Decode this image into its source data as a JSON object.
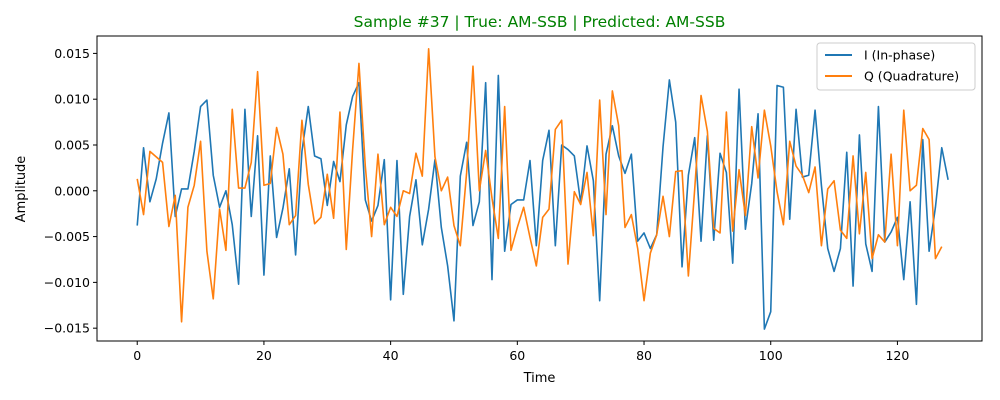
{
  "chart_data": {
    "type": "line",
    "title": "Sample #37 | True: AM-SSB | Predicted: AM-SSB",
    "title_color": "#008000",
    "xlabel": "Time",
    "ylabel": "Amplitude",
    "xlim": [
      -6.35,
      133.35
    ],
    "ylim": [
      -0.0164,
      0.0169
    ],
    "x_ticks": [
      0,
      20,
      40,
      60,
      80,
      100,
      120
    ],
    "x_tick_labels": [
      "0",
      "20",
      "40",
      "60",
      "80",
      "100",
      "120"
    ],
    "y_ticks": [
      -0.015,
      -0.01,
      -0.005,
      0.0,
      0.005,
      0.01,
      0.015
    ],
    "y_tick_labels": [
      "−0.015",
      "−0.010",
      "−0.005",
      "0.000",
      "0.005",
      "0.010",
      "0.015"
    ],
    "grid": false,
    "legend_position": "top-right",
    "series": [
      {
        "name": "I (In-phase)",
        "color": "#1f77b4",
        "values": [
          -0.0038,
          0.0047,
          -0.0012,
          0.0013,
          0.0052,
          0.0085,
          -0.0028,
          0.0002,
          0.0002,
          0.0043,
          0.0092,
          0.0099,
          0.0017,
          -0.0018,
          0.0,
          -0.0037,
          -0.0102,
          0.0089,
          -0.0028,
          0.006,
          -0.0092,
          0.0038,
          -0.0051,
          -0.0019,
          0.0024,
          -0.007,
          0.0043,
          0.0092,
          0.0038,
          0.0035,
          -0.0016,
          0.0032,
          0.001,
          0.0072,
          0.0103,
          0.0118,
          -0.001,
          -0.0033,
          -0.0016,
          0.0034,
          -0.0119,
          0.0033,
          -0.0113,
          -0.0028,
          0.0012,
          -0.0059,
          -0.002,
          0.0034,
          -0.004,
          -0.0082,
          -0.0142,
          0.0016,
          0.0053,
          -0.0038,
          -0.0012,
          0.0118,
          -0.0097,
          0.0126,
          -0.0066,
          -0.0015,
          -0.001,
          -0.001,
          0.0033,
          -0.006,
          0.0033,
          0.0066,
          -0.006,
          0.005,
          0.0045,
          0.0038,
          -0.0013,
          0.0049,
          0.0011,
          -0.012,
          0.004,
          0.0071,
          0.0038,
          0.0019,
          0.004,
          -0.0055,
          -0.0046,
          -0.0063,
          -0.0048,
          0.0048,
          0.0121,
          0.0075,
          -0.0083,
          0.0017,
          0.0058,
          -0.0055,
          0.006,
          -0.0054,
          0.0041,
          0.002,
          -0.0079,
          0.0111,
          -0.0042,
          0.0008,
          0.0084,
          -0.0151,
          -0.0132,
          0.0115,
          0.0113,
          -0.0031,
          0.0089,
          0.0015,
          0.0017,
          0.0088,
          0.0006,
          -0.0063,
          -0.0088,
          -0.0063,
          0.0042,
          -0.0104,
          0.0061,
          -0.0058,
          -0.0088,
          0.0092,
          -0.0056,
          -0.0045,
          -0.0029,
          -0.0097,
          -0.0012,
          -0.0124,
          0.0056,
          -0.0066,
          -0.0018,
          0.0047,
          0.0012
        ]
      },
      {
        "name": "Q (Quadrature)",
        "color": "#ff7f0e",
        "values": [
          0.0013,
          -0.0026,
          0.0043,
          0.0037,
          0.0031,
          -0.0039,
          -0.0005,
          -0.0143,
          -0.0018,
          0.0006,
          0.0054,
          -0.0066,
          -0.0118,
          -0.002,
          -0.0065,
          0.0089,
          0.0003,
          0.0003,
          0.0031,
          0.013,
          0.0006,
          0.0008,
          0.0069,
          0.004,
          -0.0037,
          -0.0027,
          0.0077,
          0.0007,
          -0.0036,
          -0.0029,
          0.0018,
          -0.003,
          0.0086,
          -0.0064,
          0.0045,
          0.0139,
          0.0027,
          -0.005,
          0.004,
          -0.0037,
          -0.0018,
          -0.0028,
          0.0,
          -0.0003,
          0.0041,
          0.0016,
          0.0155,
          0.0037,
          0.0,
          0.0015,
          -0.0038,
          -0.006,
          0.002,
          0.0136,
          0.0,
          0.0044,
          -0.0008,
          -0.0052,
          0.0092,
          -0.0065,
          -0.004,
          -0.0018,
          -0.0051,
          -0.0082,
          -0.0029,
          -0.002,
          0.0067,
          0.0077,
          -0.008,
          -0.0001,
          -0.0015,
          0.002,
          -0.0049,
          0.0099,
          -0.0026,
          0.0109,
          0.0071,
          -0.004,
          -0.0026,
          -0.0063,
          -0.012,
          -0.0068,
          -0.0048,
          -0.0006,
          -0.005,
          0.0021,
          0.0022,
          -0.0093,
          0.0002,
          0.0104,
          0.0065,
          -0.0041,
          -0.0046,
          0.0086,
          -0.0044,
          0.0023,
          -0.0027,
          0.007,
          0.0014,
          0.0088,
          0.0049,
          -0.0001,
          -0.0037,
          0.0054,
          0.0027,
          0.0017,
          -0.0002,
          0.0026,
          -0.006,
          0.0002,
          0.0011,
          -0.0043,
          -0.0052,
          0.0038,
          -0.0047,
          0.002,
          -0.0074,
          -0.0048,
          -0.0056,
          0.004,
          -0.006,
          0.0088,
          0.0,
          0.0006,
          0.0068,
          0.0056,
          -0.0074,
          -0.0061
        ]
      }
    ]
  }
}
